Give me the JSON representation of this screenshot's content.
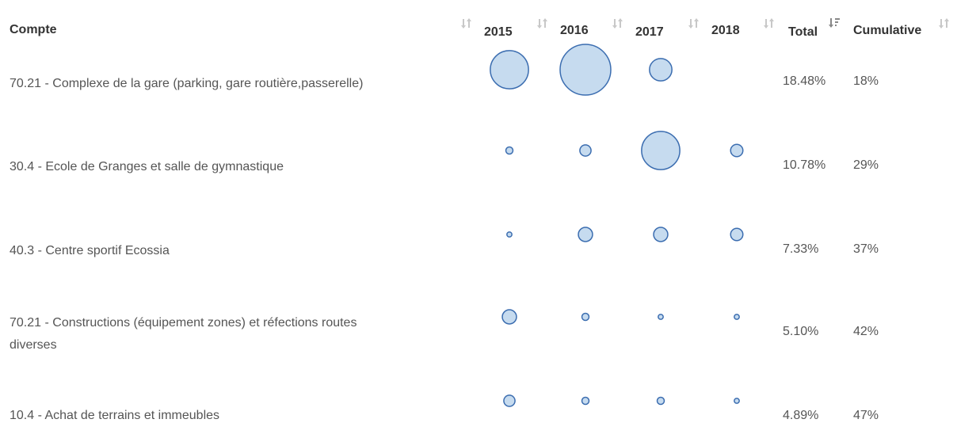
{
  "table": {
    "headers": [
      "Compte",
      "2015",
      "2016",
      "2017",
      "2018",
      "Total",
      "Cumulative"
    ],
    "rows": [
      {
        "compte": "70.21 - Complexe de la gare (parking, gare routière,passerelle)",
        "bubbles": [
          5.8,
          10.2,
          2.0,
          null
        ],
        "total": "18.48%",
        "cumulative": "18%"
      },
      {
        "compte": "30.4 - Ecole de Granges et salle de gymnastique",
        "bubbles": [
          0.2,
          0.5,
          5.8,
          0.6
        ],
        "total": "10.78%",
        "cumulative": "29%"
      },
      {
        "compte": "40.3 - Centre sportif Ecossia",
        "bubbles": [
          0.1,
          0.8,
          0.8,
          0.6
        ],
        "total": "7.33%",
        "cumulative": "37%"
      },
      {
        "compte": "70.21 - Constructions (équipement zones) et réfections routes diverses",
        "bubbles": [
          0.8,
          0.2,
          0.1,
          0.1
        ],
        "total": "5.10%",
        "cumulative": "42%"
      },
      {
        "compte": "10.4 - Achat de terrains et immeubles",
        "bubbles": [
          0.5,
          0.2,
          0.2,
          0.1
        ],
        "total": "4.89%",
        "cumulative": "47%"
      }
    ]
  }
}
